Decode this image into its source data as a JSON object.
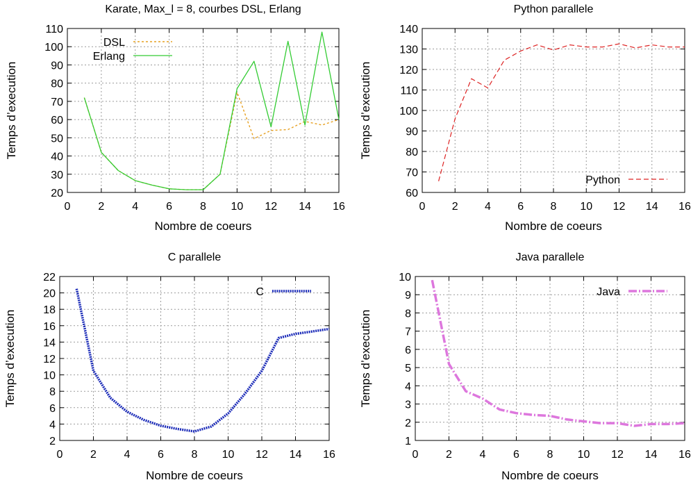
{
  "chart_data": [
    {
      "type": "line",
      "title": "Karate, Max_l = 8, courbes DSL, Erlang",
      "xlabel": "Nombre de coeurs",
      "ylabel": "Temps d’execution",
      "xlim": [
        0,
        16
      ],
      "ylim": [
        20,
        110
      ],
      "xticks": [
        0,
        2,
        4,
        6,
        8,
        10,
        12,
        14,
        16
      ],
      "yticks": [
        20,
        30,
        40,
        50,
        60,
        70,
        80,
        90,
        100,
        110
      ],
      "grid": true,
      "legend_position": "top-left",
      "series": [
        {
          "name": "DSL",
          "color": "#e6a020",
          "style": "dotted",
          "x": [
            1,
            2,
            3,
            4,
            5,
            6,
            7,
            8,
            9,
            10,
            11,
            12,
            13,
            14,
            15,
            16
          ],
          "y": [
            72,
            42,
            32,
            26.5,
            24,
            22,
            21.5,
            21.5,
            30,
            75,
            49.5,
            54,
            54.5,
            59,
            57,
            60
          ]
        },
        {
          "name": "Erlang",
          "color": "#33cc33",
          "style": "solid",
          "x": [
            1,
            2,
            3,
            4,
            5,
            6,
            7,
            8,
            9,
            10,
            11,
            12,
            13,
            14,
            15,
            16
          ],
          "y": [
            72,
            42,
            32,
            26.5,
            24,
            22,
            21.5,
            21.5,
            30,
            77,
            92,
            56,
            103,
            57,
            108,
            60
          ]
        }
      ]
    },
    {
      "type": "line",
      "title": "Python parallele",
      "xlabel": "Nombre de coeurs",
      "ylabel": "Temps d’execution",
      "xlim": [
        0,
        16
      ],
      "ylim": [
        60,
        140
      ],
      "xticks": [
        0,
        2,
        4,
        6,
        8,
        10,
        12,
        14,
        16
      ],
      "yticks": [
        60,
        70,
        80,
        90,
        100,
        110,
        120,
        130,
        140
      ],
      "grid": true,
      "legend_position": "bottom-right",
      "series": [
        {
          "name": "Python",
          "color": "#dd2222",
          "style": "dashed",
          "x": [
            1,
            2,
            3,
            4,
            5,
            6,
            7,
            8,
            9,
            10,
            11,
            12,
            13,
            14,
            15,
            16
          ],
          "y": [
            65.5,
            96,
            115.5,
            111,
            124.5,
            129,
            132,
            129.5,
            132,
            131,
            131,
            132.5,
            130.5,
            132,
            131,
            131
          ]
        }
      ]
    },
    {
      "type": "line",
      "title": "C parallele",
      "xlabel": "Nombre de coeurs",
      "ylabel": "Temps d’execution",
      "xlim": [
        0,
        16
      ],
      "ylim": [
        2,
        22
      ],
      "xticks": [
        0,
        2,
        4,
        6,
        8,
        10,
        12,
        14,
        16
      ],
      "yticks": [
        2,
        4,
        6,
        8,
        10,
        12,
        14,
        16,
        18,
        20,
        22
      ],
      "grid": true,
      "legend_position": "top-right",
      "series": [
        {
          "name": "C",
          "color": "#1a2ab8",
          "style": "dotted-thick",
          "x": [
            1,
            2,
            3,
            4,
            5,
            6,
            7,
            8,
            9,
            10,
            11,
            12,
            13,
            14,
            15,
            16
          ],
          "y": [
            20.5,
            10.5,
            7.2,
            5.5,
            4.5,
            3.8,
            3.4,
            3.1,
            3.7,
            5.3,
            7.7,
            10.5,
            14.5,
            15,
            15.3,
            15.6
          ]
        }
      ]
    },
    {
      "type": "line",
      "title": "Java parallele",
      "xlabel": "Nombre de coeurs",
      "ylabel": "Temps d’execution",
      "xlim": [
        0,
        16
      ],
      "ylim": [
        1,
        10
      ],
      "xticks": [
        0,
        2,
        4,
        6,
        8,
        10,
        12,
        14,
        16
      ],
      "yticks": [
        1,
        2,
        3,
        4,
        5,
        6,
        7,
        8,
        9,
        10
      ],
      "grid": true,
      "legend_position": "top-right",
      "series": [
        {
          "name": "Java",
          "color": "#dd77dd",
          "style": "dash-dot-thick",
          "x": [
            1,
            2,
            3,
            4,
            5,
            6,
            7,
            8,
            9,
            10,
            11,
            12,
            13,
            14,
            15,
            16
          ],
          "y": [
            9.8,
            5.2,
            3.7,
            3.3,
            2.7,
            2.5,
            2.4,
            2.35,
            2.15,
            2.05,
            1.95,
            1.95,
            1.8,
            1.9,
            1.9,
            1.95
          ]
        }
      ]
    }
  ]
}
